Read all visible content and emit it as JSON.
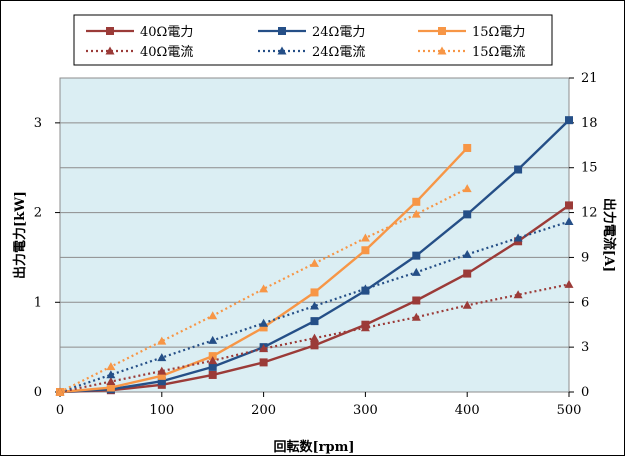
{
  "chart_data": {
    "type": "line",
    "x": [
      0,
      50,
      100,
      150,
      200,
      250,
      300,
      350,
      400,
      450,
      500
    ],
    "xlabel": "回転数[rpm]",
    "ylabel": "出力電力[kW]",
    "y2label": "出力電流[A]",
    "xlim": [
      0,
      500
    ],
    "ylim": [
      0,
      3.5
    ],
    "y2lim": [
      0,
      21
    ],
    "xticks": [
      "0",
      "100",
      "200",
      "300",
      "400",
      "500"
    ],
    "yticks": [
      "0",
      "1",
      "2",
      "3"
    ],
    "y2ticks": [
      "0",
      "3",
      "6",
      "9",
      "12",
      "15",
      "18",
      "21"
    ],
    "grid": "horizontal",
    "legend_position": "top",
    "series": [
      {
        "name": "40Ω電力",
        "axis": "left",
        "color": "#9b3b38",
        "style": "solid",
        "marker": "square",
        "values": [
          0,
          0.02,
          0.08,
          0.19,
          0.33,
          0.52,
          0.75,
          1.02,
          1.32,
          1.68,
          2.08
        ]
      },
      {
        "name": "24Ω電力",
        "axis": "left",
        "color": "#254f87",
        "style": "solid",
        "marker": "square",
        "values": [
          0,
          0.03,
          0.12,
          0.28,
          0.5,
          0.79,
          1.13,
          1.52,
          1.98,
          2.48,
          3.03
        ]
      },
      {
        "name": "15Ω電力",
        "axis": "left",
        "color": "#f79646",
        "style": "solid",
        "marker": "square",
        "values": [
          0,
          0.05,
          0.18,
          0.4,
          0.72,
          1.11,
          1.58,
          2.12,
          2.72,
          null,
          null
        ]
      },
      {
        "name": "40Ω電流",
        "axis": "right",
        "color": "#9b3b38",
        "style": "dotted",
        "marker": "triangle",
        "values": [
          0,
          0.7,
          1.4,
          2.1,
          2.9,
          3.6,
          4.3,
          5.0,
          5.8,
          6.5,
          7.2
        ]
      },
      {
        "name": "24Ω電流",
        "axis": "right",
        "color": "#254f87",
        "style": "dotted",
        "marker": "triangle",
        "values": [
          0,
          1.15,
          2.3,
          3.45,
          4.6,
          5.75,
          6.9,
          8.0,
          9.2,
          10.3,
          11.4
        ]
      },
      {
        "name": "15Ω電流",
        "axis": "right",
        "color": "#f79646",
        "style": "dotted",
        "marker": "triangle",
        "values": [
          0,
          1.7,
          3.4,
          5.1,
          6.9,
          8.6,
          10.3,
          11.9,
          13.6,
          null,
          null
        ]
      }
    ]
  }
}
